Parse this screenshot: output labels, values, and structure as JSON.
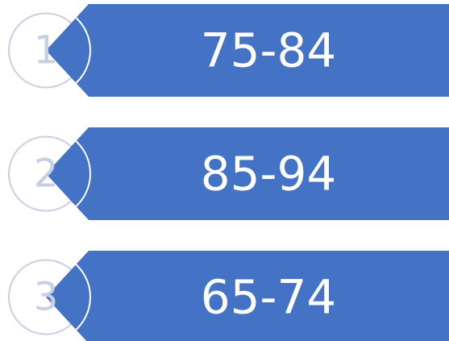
{
  "items": [
    {
      "number": "1",
      "label": "75-84"
    },
    {
      "number": "2",
      "label": "85-94"
    },
    {
      "number": "3",
      "label": "65-74"
    }
  ]
}
